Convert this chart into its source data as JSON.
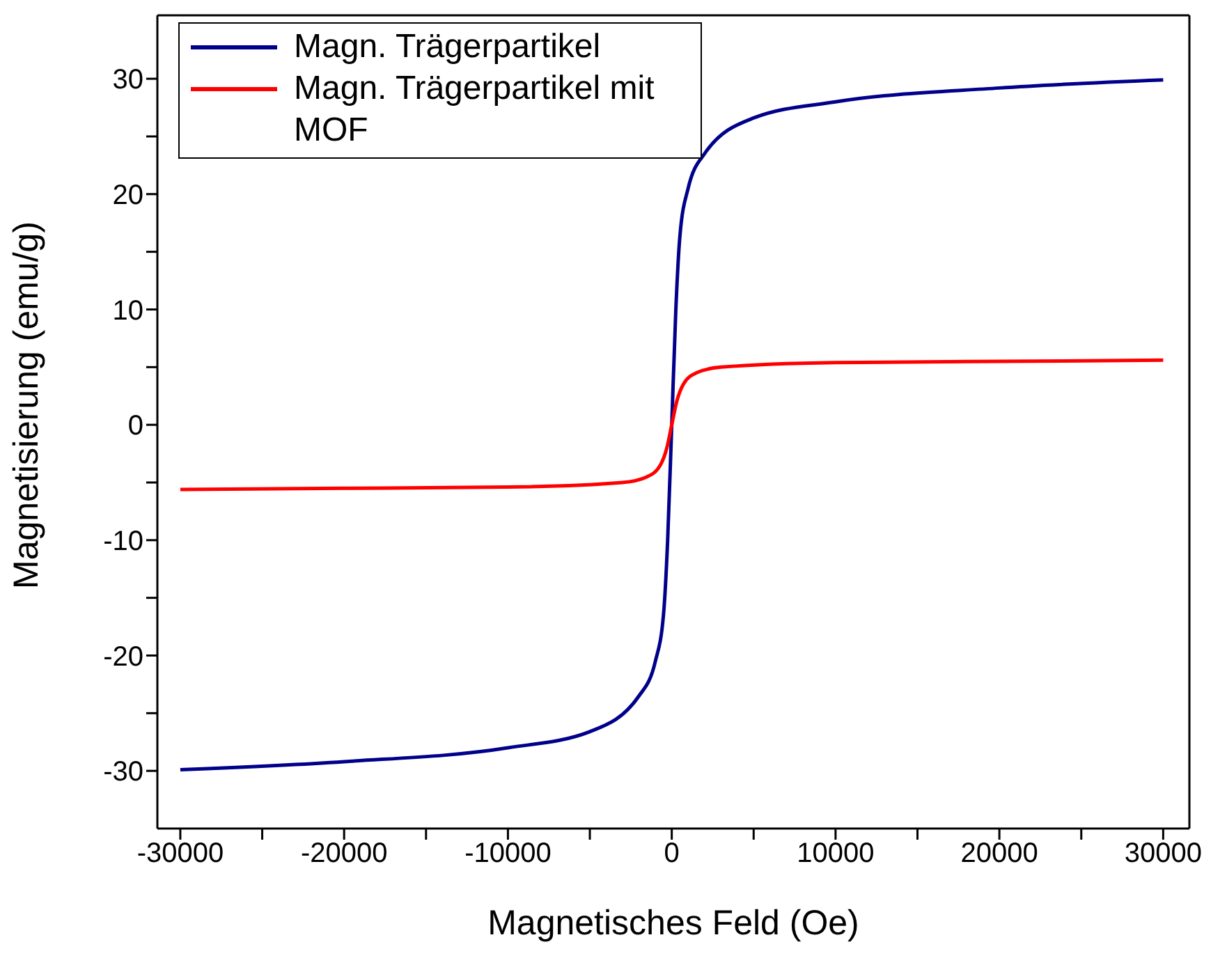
{
  "chart_data": {
    "type": "line",
    "xlabel": "Magnetisches Feld (Oe)",
    "ylabel": "Magnetisierung (emu/g)",
    "xlim": [
      -31400,
      31600
    ],
    "ylim": [
      -35,
      35.5
    ],
    "xticks": [
      -30000,
      {
        "value": -25000,
        "label": null
      },
      -20000,
      {
        "value": -15000,
        "label": null
      },
      -10000,
      {
        "value": -5000,
        "label": null
      },
      0,
      {
        "value": 5000,
        "label": null
      },
      10000,
      {
        "value": 15000,
        "label": null
      },
      20000,
      {
        "value": 25000,
        "label": null
      },
      30000
    ],
    "yticks": [
      -30,
      {
        "value": -25,
        "label": null
      },
      -20,
      {
        "value": -15,
        "label": null
      },
      -10,
      {
        "value": -5,
        "label": null
      },
      0,
      {
        "value": 5,
        "label": null
      },
      10,
      {
        "value": 15,
        "label": null
      },
      20,
      {
        "value": 25,
        "label": null
      },
      30
    ],
    "grid": false,
    "legend": "top left",
    "marker": "none",
    "line_style": "solid",
    "series": [
      {
        "name": "Magn. Trägerpartikel",
        "color": "#00008b",
        "x": [
          -30000,
          -20000,
          -10000,
          -5000,
          -2000,
          -1000,
          -500,
          -250,
          0,
          250,
          500,
          1000,
          2000,
          5000,
          10000,
          20000,
          30000
        ],
        "values": [
          -29.9,
          -29.2,
          -28,
          -26.6,
          -23.5,
          -20.5,
          -16.4,
          -10,
          0,
          10,
          16.4,
          20.5,
          23.5,
          26.6,
          28,
          29.2,
          29.9
        ]
      },
      {
        "name": "Magn. Trägerpartikel mit MOF",
        "color": "#ff0000",
        "x": [
          -30000,
          -20000,
          -10000,
          -3000,
          -1500,
          -700,
          -300,
          0,
          300,
          700,
          1500,
          3000,
          10000,
          20000,
          30000
        ],
        "values": [
          -5.6,
          -5.5,
          -5.4,
          -5,
          -4.5,
          -3.5,
          -2,
          0,
          2,
          3.5,
          4.5,
          5,
          5.4,
          5.5,
          5.6
        ]
      }
    ]
  }
}
